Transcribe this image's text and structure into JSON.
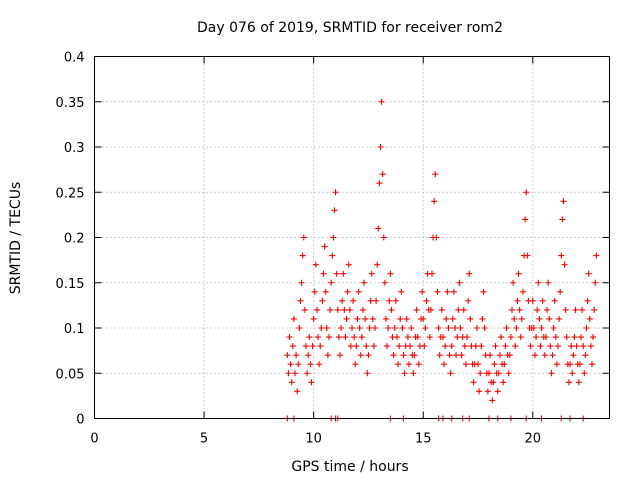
{
  "chart_data": {
    "type": "scatter",
    "title": "Day 076 of 2019, SRMTID for receiver rom2",
    "xlabel": "GPS time / hours",
    "ylabel": "SRMTID / TECUs",
    "xlim": [
      0,
      23.5
    ],
    "ylim": [
      0,
      0.4
    ],
    "xticks": [
      0,
      5,
      10,
      15,
      20
    ],
    "xtick_labels": [
      "0",
      "5",
      "10",
      "15",
      "20"
    ],
    "yticks": [
      0,
      0.05,
      0.1,
      0.15,
      0.2,
      0.25,
      0.3,
      0.35,
      0.4
    ],
    "ytick_labels": [
      "0",
      "0.05",
      "0.1",
      "0.15",
      "0.2",
      "0.25",
      "0.3",
      "0.35",
      "0.4"
    ],
    "grid": true,
    "marker": "plus",
    "color": "#ff0000",
    "series": [
      {
        "name": "SRMTID",
        "points": [
          [
            8.8,
            0.07
          ],
          [
            8.85,
            0.05
          ],
          [
            8.9,
            0.09
          ],
          [
            8.95,
            0.06
          ],
          [
            9.0,
            0.04
          ],
          [
            9.05,
            0.08
          ],
          [
            9.1,
            0.11
          ],
          [
            9.15,
            0.05
          ],
          [
            9.2,
            0.07
          ],
          [
            9.25,
            0.03
          ],
          [
            9.3,
            0.06
          ],
          [
            9.35,
            0.1
          ],
          [
            9.4,
            0.13
          ],
          [
            9.45,
            0.15
          ],
          [
            9.5,
            0.18
          ],
          [
            9.55,
            0.2
          ],
          [
            9.6,
            0.12
          ],
          [
            9.65,
            0.08
          ],
          [
            9.7,
            0.05
          ],
          [
            9.75,
            0.07
          ],
          [
            9.8,
            0.09
          ],
          [
            9.85,
            0.06
          ],
          [
            9.9,
            0.04
          ],
          [
            9.95,
            0.08
          ],
          [
            10.0,
            0.11
          ],
          [
            10.05,
            0.14
          ],
          [
            10.1,
            0.17
          ],
          [
            10.15,
            0.12
          ],
          [
            10.2,
            0.09
          ],
          [
            10.25,
            0.06
          ],
          [
            10.3,
            0.08
          ],
          [
            10.35,
            0.1
          ],
          [
            10.4,
            0.13
          ],
          [
            10.45,
            0.16
          ],
          [
            10.5,
            0.19
          ],
          [
            10.55,
            0.14
          ],
          [
            10.6,
            0.1
          ],
          [
            10.65,
            0.07
          ],
          [
            10.7,
            0.09
          ],
          [
            10.75,
            0.12
          ],
          [
            10.8,
            0.15
          ],
          [
            10.85,
            0.18
          ],
          [
            10.9,
            0.2
          ],
          [
            10.95,
            0.23
          ],
          [
            11.0,
            0.25
          ],
          [
            11.05,
            0.16
          ],
          [
            11.1,
            0.12
          ],
          [
            11.15,
            0.09
          ],
          [
            11.2,
            0.07
          ],
          [
            11.25,
            0.1
          ],
          [
            11.3,
            0.13
          ],
          [
            11.35,
            0.16
          ],
          [
            11.4,
            0.12
          ],
          [
            11.45,
            0.09
          ],
          [
            11.5,
            0.11
          ],
          [
            11.55,
            0.14
          ],
          [
            11.6,
            0.17
          ],
          [
            11.65,
            0.12
          ],
          [
            11.7,
            0.08
          ],
          [
            11.75,
            0.1
          ],
          [
            11.8,
            0.13
          ],
          [
            11.85,
            0.09
          ],
          [
            11.9,
            0.06
          ],
          [
            11.95,
            0.08
          ],
          [
            12.0,
            0.11
          ],
          [
            12.05,
            0.14
          ],
          [
            12.1,
            0.1
          ],
          [
            12.15,
            0.07
          ],
          [
            12.2,
            0.09
          ],
          [
            12.25,
            0.12
          ],
          [
            12.3,
            0.15
          ],
          [
            12.35,
            0.11
          ],
          [
            12.4,
            0.08
          ],
          [
            12.45,
            0.05
          ],
          [
            12.5,
            0.07
          ],
          [
            12.55,
            0.1
          ],
          [
            12.6,
            0.13
          ],
          [
            12.65,
            0.16
          ],
          [
            12.7,
            0.11
          ],
          [
            12.75,
            0.08
          ],
          [
            12.8,
            0.1
          ],
          [
            12.85,
            0.13
          ],
          [
            12.9,
            0.17
          ],
          [
            12.95,
            0.21
          ],
          [
            13.0,
            0.26
          ],
          [
            13.05,
            0.3
          ],
          [
            13.1,
            0.35
          ],
          [
            13.15,
            0.27
          ],
          [
            13.2,
            0.2
          ],
          [
            13.25,
            0.15
          ],
          [
            13.3,
            0.11
          ],
          [
            13.35,
            0.08
          ],
          [
            13.4,
            0.1
          ],
          [
            13.45,
            0.13
          ],
          [
            13.5,
            0.16
          ],
          [
            13.55,
            0.12
          ],
          [
            13.6,
            0.09
          ],
          [
            13.65,
            0.07
          ],
          [
            13.7,
            0.1
          ],
          [
            13.75,
            0.13
          ],
          [
            13.8,
            0.09
          ],
          [
            13.85,
            0.06
          ],
          [
            13.9,
            0.08
          ],
          [
            13.95,
            0.11
          ],
          [
            14.0,
            0.14
          ],
          [
            14.05,
            0.1
          ],
          [
            14.1,
            0.07
          ],
          [
            14.15,
            0.05
          ],
          [
            14.2,
            0.08
          ],
          [
            14.25,
            0.11
          ],
          [
            14.3,
            0.09
          ],
          [
            14.35,
            0.06
          ],
          [
            14.4,
            0.08
          ],
          [
            14.45,
            0.1
          ],
          [
            14.5,
            0.07
          ],
          [
            14.55,
            0.05
          ],
          [
            14.6,
            0.07
          ],
          [
            14.65,
            0.09
          ],
          [
            14.7,
            0.12
          ],
          [
            14.75,
            0.09
          ],
          [
            14.8,
            0.06
          ],
          [
            14.85,
            0.08
          ],
          [
            14.9,
            0.11
          ],
          [
            14.95,
            0.14
          ],
          [
            15.0,
            0.11
          ],
          [
            15.05,
            0.08
          ],
          [
            15.1,
            0.1
          ],
          [
            15.15,
            0.13
          ],
          [
            15.2,
            0.16
          ],
          [
            15.25,
            0.12
          ],
          [
            15.3,
            0.09
          ],
          [
            15.35,
            0.12
          ],
          [
            15.4,
            0.16
          ],
          [
            15.45,
            0.2
          ],
          [
            15.5,
            0.24
          ],
          [
            15.55,
            0.27
          ],
          [
            15.6,
            0.2
          ],
          [
            15.65,
            0.14
          ],
          [
            15.7,
            0.1
          ],
          [
            15.75,
            0.07
          ],
          [
            15.8,
            0.09
          ],
          [
            15.85,
            0.12
          ],
          [
            15.9,
            0.09
          ],
          [
            15.95,
            0.06
          ],
          [
            16.0,
            0.08
          ],
          [
            16.05,
            0.11
          ],
          [
            16.1,
            0.14
          ],
          [
            16.15,
            0.1
          ],
          [
            16.2,
            0.07
          ],
          [
            16.25,
            0.05
          ],
          [
            16.3,
            0.08
          ],
          [
            16.35,
            0.11
          ],
          [
            16.4,
            0.14
          ],
          [
            16.45,
            0.1
          ],
          [
            16.5,
            0.07
          ],
          [
            16.55,
            0.09
          ],
          [
            16.6,
            0.12
          ],
          [
            16.65,
            0.15
          ],
          [
            16.7,
            0.1
          ],
          [
            16.75,
            0.07
          ],
          [
            16.8,
            0.09
          ],
          [
            16.85,
            0.12
          ],
          [
            16.9,
            0.08
          ],
          [
            16.95,
            0.06
          ],
          [
            17.0,
            0.09
          ],
          [
            17.05,
            0.13
          ],
          [
            17.1,
            0.16
          ],
          [
            17.15,
            0.11
          ],
          [
            17.2,
            0.08
          ],
          [
            17.25,
            0.06
          ],
          [
            17.3,
            0.04
          ],
          [
            17.35,
            0.06
          ],
          [
            17.4,
            0.08
          ],
          [
            17.45,
            0.1
          ],
          [
            17.5,
            0.06
          ],
          [
            17.55,
            0.03
          ],
          [
            17.6,
            0.05
          ],
          [
            17.65,
            0.08
          ],
          [
            17.7,
            0.11
          ],
          [
            17.75,
            0.14
          ],
          [
            17.8,
            0.1
          ],
          [
            17.85,
            0.07
          ],
          [
            17.9,
            0.05
          ],
          [
            17.95,
            0.03
          ],
          [
            18.0,
            0.05
          ],
          [
            18.05,
            0.07
          ],
          [
            18.1,
            0.04
          ],
          [
            18.15,
            0.02
          ],
          [
            18.2,
            0.04
          ],
          [
            18.25,
            0.06
          ],
          [
            18.3,
            0.08
          ],
          [
            18.35,
            0.05
          ],
          [
            18.4,
            0.03
          ],
          [
            18.45,
            0.05
          ],
          [
            18.5,
            0.07
          ],
          [
            18.55,
            0.09
          ],
          [
            18.6,
            0.06
          ],
          [
            18.65,
            0.04
          ],
          [
            18.7,
            0.06
          ],
          [
            18.75,
            0.08
          ],
          [
            18.8,
            0.1
          ],
          [
            18.85,
            0.07
          ],
          [
            18.9,
            0.05
          ],
          [
            18.95,
            0.07
          ],
          [
            19.0,
            0.09
          ],
          [
            19.05,
            0.12
          ],
          [
            19.1,
            0.15
          ],
          [
            19.15,
            0.11
          ],
          [
            19.2,
            0.08
          ],
          [
            19.25,
            0.1
          ],
          [
            19.3,
            0.13
          ],
          [
            19.35,
            0.16
          ],
          [
            19.4,
            0.12
          ],
          [
            19.45,
            0.09
          ],
          [
            19.5,
            0.11
          ],
          [
            19.55,
            0.14
          ],
          [
            19.6,
            0.18
          ],
          [
            19.65,
            0.22
          ],
          [
            19.7,
            0.25
          ],
          [
            19.75,
            0.18
          ],
          [
            19.8,
            0.13
          ],
          [
            19.85,
            0.1
          ],
          [
            19.9,
            0.08
          ],
          [
            19.95,
            0.1
          ],
          [
            20.0,
            0.13
          ],
          [
            20.05,
            0.1
          ],
          [
            20.1,
            0.07
          ],
          [
            20.15,
            0.09
          ],
          [
            20.2,
            0.12
          ],
          [
            20.25,
            0.15
          ],
          [
            20.3,
            0.11
          ],
          [
            20.35,
            0.08
          ],
          [
            20.4,
            0.1
          ],
          [
            20.45,
            0.13
          ],
          [
            20.5,
            0.09
          ],
          [
            20.55,
            0.07
          ],
          [
            20.6,
            0.09
          ],
          [
            20.65,
            0.12
          ],
          [
            20.7,
            0.15
          ],
          [
            20.75,
            0.11
          ],
          [
            20.8,
            0.08
          ],
          [
            20.85,
            0.05
          ],
          [
            20.9,
            0.07
          ],
          [
            20.95,
            0.1
          ],
          [
            21.0,
            0.13
          ],
          [
            21.05,
            0.09
          ],
          [
            21.1,
            0.06
          ],
          [
            21.15,
            0.08
          ],
          [
            21.2,
            0.11
          ],
          [
            21.25,
            0.14
          ],
          [
            21.3,
            0.18
          ],
          [
            21.35,
            0.22
          ],
          [
            21.4,
            0.24
          ],
          [
            21.45,
            0.17
          ],
          [
            21.5,
            0.12
          ],
          [
            21.55,
            0.09
          ],
          [
            21.6,
            0.06
          ],
          [
            21.65,
            0.04
          ],
          [
            21.7,
            0.06
          ],
          [
            21.75,
            0.08
          ],
          [
            21.8,
            0.05
          ],
          [
            21.85,
            0.07
          ],
          [
            21.9,
            0.09
          ],
          [
            21.95,
            0.12
          ],
          [
            22.0,
            0.08
          ],
          [
            22.05,
            0.06
          ],
          [
            22.1,
            0.04
          ],
          [
            22.15,
            0.06
          ],
          [
            22.2,
            0.09
          ],
          [
            22.25,
            0.12
          ],
          [
            22.3,
            0.08
          ],
          [
            22.35,
            0.05
          ],
          [
            22.4,
            0.07
          ],
          [
            22.45,
            0.1
          ],
          [
            22.5,
            0.13
          ],
          [
            22.55,
            0.16
          ],
          [
            22.6,
            0.11
          ],
          [
            22.65,
            0.08
          ],
          [
            22.7,
            0.06
          ],
          [
            22.75,
            0.09
          ],
          [
            22.8,
            0.12
          ],
          [
            22.85,
            0.15
          ],
          [
            22.9,
            0.18
          ],
          [
            8.8,
            0.0
          ],
          [
            9.1,
            0.0
          ],
          [
            10.8,
            0.0
          ],
          [
            11.0,
            0.0
          ],
          [
            11.1,
            0.0
          ],
          [
            13.5,
            0.0
          ],
          [
            14.1,
            0.0
          ],
          [
            15.7,
            0.0
          ],
          [
            15.9,
            0.0
          ],
          [
            16.3,
            0.0
          ],
          [
            16.8,
            0.0
          ],
          [
            17.1,
            0.0
          ],
          [
            18.0,
            0.0
          ],
          [
            18.4,
            0.0
          ],
          [
            19.0,
            0.0
          ],
          [
            19.7,
            0.0
          ],
          [
            20.4,
            0.0
          ],
          [
            21.3,
            0.0
          ],
          [
            21.7,
            0.0
          ],
          [
            22.3,
            0.0
          ]
        ]
      }
    ]
  }
}
